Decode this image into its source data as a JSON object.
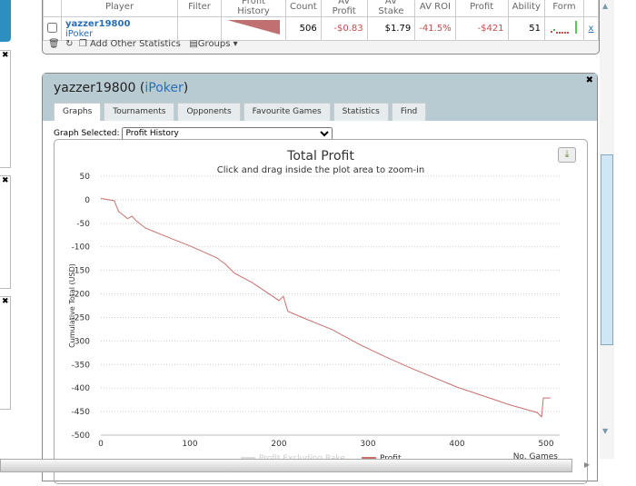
{
  "top_table": {
    "headers": [
      "",
      "Player",
      "Filter",
      "Profit History",
      "Count",
      "AV Profit",
      "AV Stake",
      "AV ROI",
      "Profit",
      "Ability",
      "Form",
      ""
    ],
    "row": {
      "player": "yazzer19800",
      "network": "iPoker",
      "count": "506",
      "av_profit": "-$0.83",
      "av_stake": "$1.79",
      "av_roi": "-41.5%",
      "profit": "-$421",
      "ability": "51",
      "remove": "x"
    },
    "toolbar": {
      "add_stats": "Add Other Statistics",
      "groups": "Groups"
    }
  },
  "panel": {
    "player": "yazzer19800",
    "open_paren": " (",
    "network": "iPoker",
    "close_paren": ")",
    "tabs": [
      "Graphs",
      "Tournaments",
      "Opponents",
      "Favourite Games",
      "Statistics",
      "Find"
    ],
    "active_tab": "Graphs",
    "graph_selected_label": "Graph Selected:",
    "graph_selected_value": "Profit History"
  },
  "colors": {
    "profit": "#c87070",
    "negative": "#c0504d",
    "link": "#2a6fb5"
  },
  "chart_data": {
    "type": "line",
    "title": "Total Profit",
    "subtitle": "Click and drag inside the plot area to zoom-in",
    "xlabel": "No. Games",
    "ylabel": "Cumulative Total (USD)",
    "xlim": [
      0,
      510
    ],
    "ylim": [
      -500,
      50
    ],
    "xticks": [
      0,
      100,
      200,
      300,
      400,
      500
    ],
    "yticks": [
      50,
      0,
      -50,
      -100,
      -150,
      -200,
      -250,
      -300,
      -350,
      -400,
      -450,
      -500
    ],
    "grid": true,
    "legend_placement": "bottom",
    "series": [
      {
        "name": "Profit Excluding Rake",
        "values": []
      },
      {
        "name": "Profit",
        "x": [
          0,
          15,
          20,
          30,
          35,
          40,
          50,
          80,
          100,
          130,
          140,
          150,
          170,
          200,
          205,
          210,
          230,
          260,
          290,
          320,
          350,
          400,
          430,
          460,
          490,
          495,
          497,
          505
        ],
        "values": [
          3,
          -2,
          -25,
          -40,
          -35,
          -45,
          -60,
          -83,
          -98,
          -123,
          -137,
          -156,
          -176,
          -214,
          -205,
          -237,
          -253,
          -276,
          -307,
          -334,
          -359,
          -398,
          -417,
          -436,
          -452,
          -461,
          -421,
          -421
        ]
      }
    ]
  }
}
